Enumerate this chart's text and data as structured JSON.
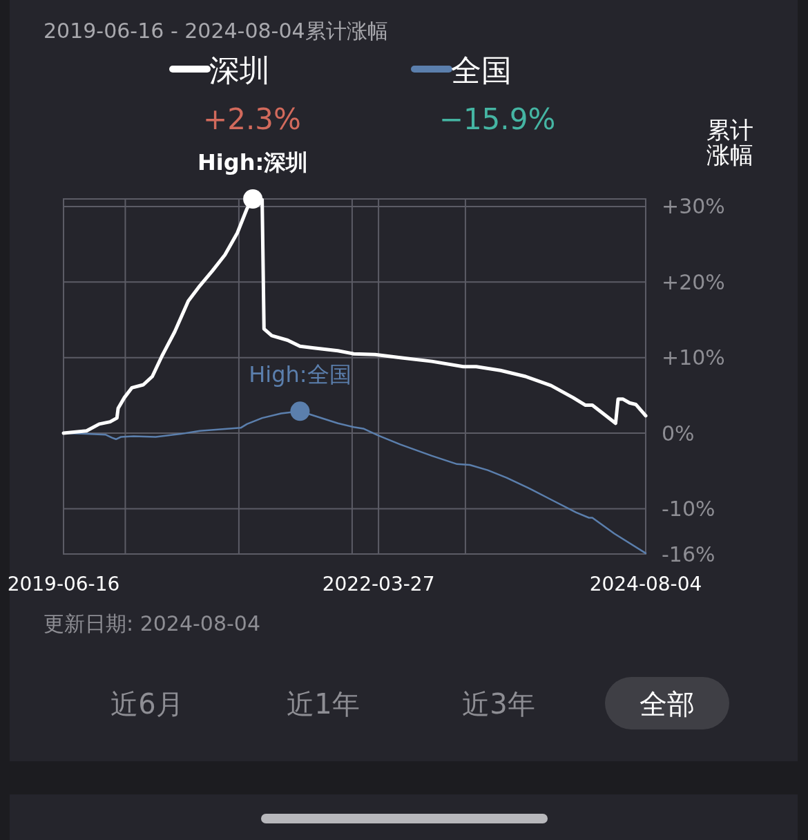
{
  "chart_data": {
    "type": "line",
    "title": "2019-06-16 - 2024-08-04累计涨幅",
    "ylabel": "累计涨幅",
    "legend": "top",
    "grid": true,
    "xlim": [
      "2019-06-16",
      "2024-08-04"
    ],
    "xticks": [
      {
        "value": "2019-06-16",
        "label": "2019-06-16"
      },
      {
        "value": "2020-01-01",
        "label": null
      },
      {
        "value": "2021-01-01",
        "label": null
      },
      {
        "value": "2022-01-01",
        "label": null
      },
      {
        "value": "2022-03-27",
        "label": "2022-03-27"
      },
      {
        "value": "2023-01-01",
        "label": null
      },
      {
        "value": "2024-08-04",
        "label": "2024-08-04"
      }
    ],
    "ylim": [
      -16,
      31
    ],
    "yticks": [
      {
        "value": 30,
        "label": "+30%"
      },
      {
        "value": 20,
        "label": "+20%"
      },
      {
        "value": 10,
        "label": "+10%"
      },
      {
        "value": 0,
        "label": "0%"
      },
      {
        "value": -10,
        "label": "-10%"
      },
      {
        "value": -16,
        "label": "-16%"
      }
    ],
    "series": [
      {
        "name": "深圳",
        "color": "#ffffff",
        "x": [
          "2019-06-16",
          "2019-08-29",
          "2019-10-09",
          "2019-11-13",
          "2019-12-05",
          "2019-12-09",
          "2019-12-29",
          "2020-01-22",
          "2020-02-28",
          "2020-03-28",
          "2020-04-28",
          "2020-06-08",
          "2020-07-22",
          "2020-08-28",
          "2020-10-08",
          "2020-11-17",
          "2020-12-27",
          "2021-01-27",
          "2021-02-15",
          "2021-03-17",
          "2021-03-23",
          "2021-04-17",
          "2021-06-07",
          "2021-07-17",
          "2021-08-26",
          "2021-11-16",
          "2022-01-06",
          "2022-03-16",
          "2022-06-05",
          "2022-09-15",
          "2022-12-25",
          "2023-02-05",
          "2023-04-24",
          "2023-07-14",
          "2023-10-04",
          "2023-12-14",
          "2024-01-23",
          "2024-02-14",
          "2024-03-23",
          "2024-04-29",
          "2024-05-07",
          "2024-05-23",
          "2024-06-13",
          "2024-07-03",
          "2024-08-04"
        ],
        "values": [
          0,
          0.3,
          1.2,
          1.5,
          2.0,
          3.3,
          4.7,
          6.0,
          6.4,
          7.5,
          10.2,
          13.4,
          17.5,
          19.5,
          21.5,
          23.6,
          26.5,
          29.7,
          31,
          30.9,
          13.8,
          12.9,
          12.3,
          11.5,
          11.3,
          10.9,
          10.5,
          10.4,
          10.0,
          9.5,
          8.8,
          8.8,
          8.3,
          7.5,
          6.3,
          4.7,
          3.7,
          3.7,
          2.5,
          1.3,
          4.5,
          4.5,
          4.0,
          3.8,
          2.3
        ]
      },
      {
        "name": "全国",
        "color": "#5b7fad",
        "x": [
          "2019-06-16",
          "2019-08-29",
          "2019-10-29",
          "2019-11-19",
          "2019-12-02",
          "2019-12-18",
          "2020-01-28",
          "2020-04-08",
          "2020-06-28",
          "2020-08-28",
          "2021-01-07",
          "2021-01-27",
          "2021-03-17",
          "2021-05-17",
          "2021-07-17",
          "2021-09-16",
          "2021-11-16",
          "2022-01-06",
          "2022-02-06",
          "2022-03-26",
          "2022-06-05",
          "2022-09-15",
          "2022-12-05",
          "2023-01-15",
          "2023-03-14",
          "2023-05-14",
          "2023-08-04",
          "2023-10-04",
          "2023-12-24",
          "2024-02-03",
          "2024-02-14",
          "2024-04-25",
          "2024-08-04"
        ],
        "values": [
          0,
          -0.1,
          -0.2,
          -0.6,
          -0.8,
          -0.5,
          -0.4,
          -0.5,
          -0.1,
          0.3,
          0.7,
          1.2,
          2.0,
          2.6,
          2.9,
          2.1,
          1.3,
          0.8,
          0.6,
          -0.3,
          -1.5,
          -3.0,
          -4.1,
          -4.2,
          -4.9,
          -5.9,
          -7.5,
          -8.8,
          -10.5,
          -11.2,
          -11.2,
          -13.3,
          -15.9
        ]
      }
    ],
    "annotations": [
      "+2.3%",
      "−15.9%",
      {
        "text": "High:深圳",
        "x": "2021-02-15",
        "y": 31
      },
      {
        "text": "High:全国",
        "x": "2021-07-17",
        "y": 2.9
      },
      "更新日期: 2024-08-04",
      "近6月",
      "近1年",
      "近3年",
      "全部"
    ]
  }
}
